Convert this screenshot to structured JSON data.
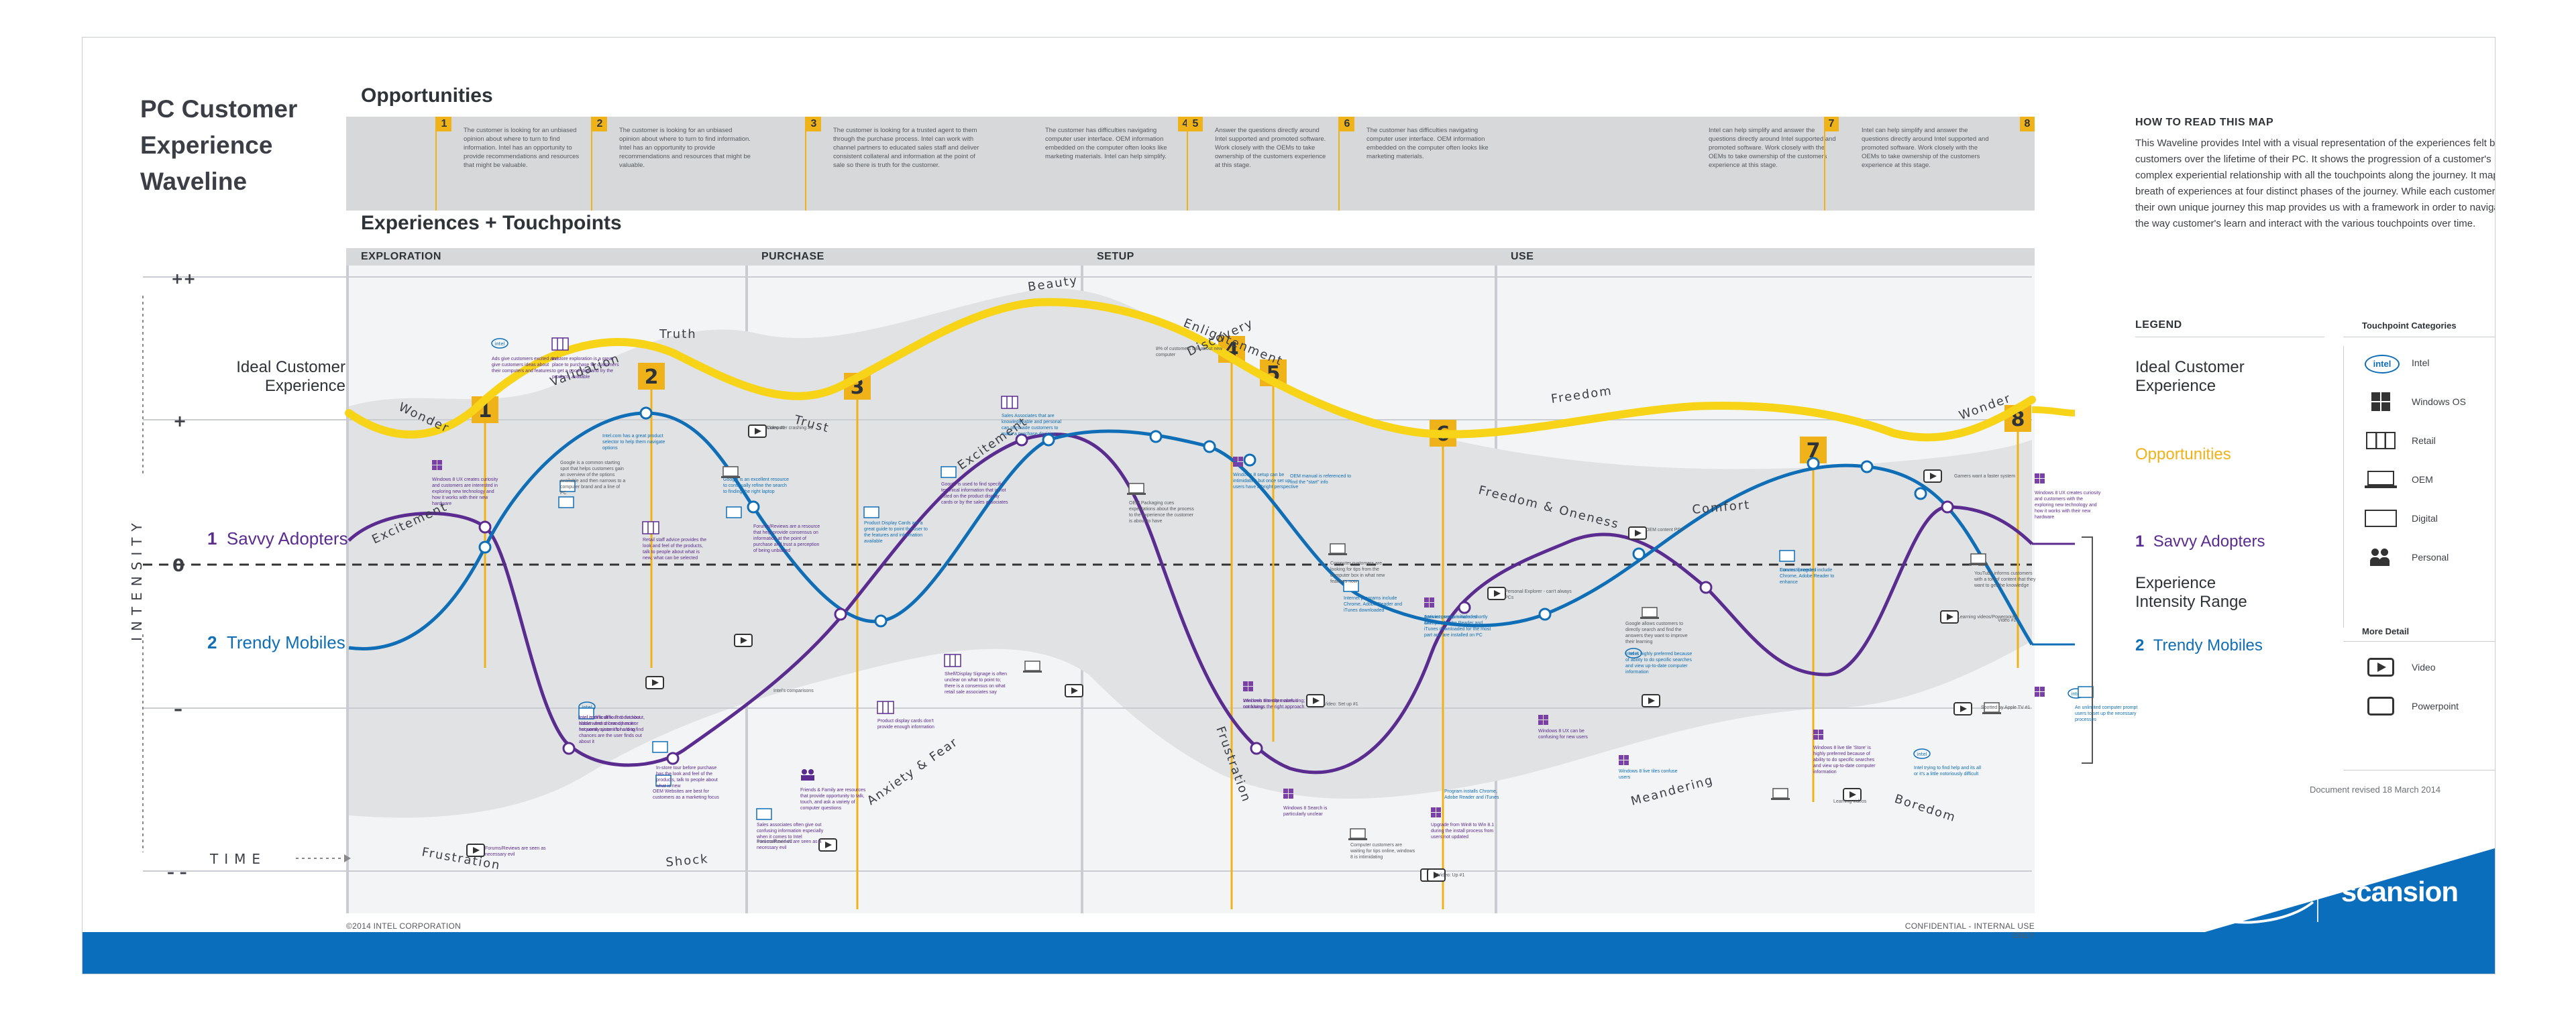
{
  "title": "PC Customer Experience Waveline",
  "sections": {
    "opportunities": "Opportunities",
    "experiences": "Experiences + Touchpoints"
  },
  "phases": [
    {
      "label": "EXPLORATION"
    },
    {
      "label": "PURCHASE"
    },
    {
      "label": "SETUP"
    },
    {
      "label": "USE"
    }
  ],
  "opportunities": [
    {
      "num": "1",
      "text": "The customer is looking for an unbiased opinion about where to turn to find information. Intel has an opportunity to provide recommendations and resources that might be valuable."
    },
    {
      "num": "2",
      "text": "The customer is looking for an unbiased opinion about where to turn to find information. Intel has an opportunity to provide recommendations and resources that might be valuable."
    },
    {
      "num": "3",
      "text": "The customer is looking for a trusted agent to them through the purchase process. Intel can work with channel partners to educated sales staff and deliver consistent collateral and information at the point of sale so there is truth for the customer."
    },
    {
      "num": "4",
      "text": "The customer has difficulties navigating computer user interface. OEM information embedded on the computer often looks like marketing materials. Intel can help simplify."
    },
    {
      "num": "5",
      "text": "Answer the questions directly around Intel supported and promoted software. Work closely with the OEMs to take ownership of the customers experience at this stage."
    },
    {
      "num": "6",
      "text": "The customer has difficulties navigating computer user interface. OEM information embedded on the computer often looks like marketing materials."
    },
    {
      "num": "7",
      "text": "Intel can help simplify and answer the questions directly around Intel supported and promoted software. Work closely with the OEMs to take ownership of the customers experience at this stage."
    },
    {
      "num": "8",
      "text": "Intel can help simplify and answer the questions directly around Intel supported and promoted software. Work closely with the OEMs to take ownership of the customers experience at this stage."
    }
  ],
  "axis": {
    "intensity": "INTENSITY",
    "time": "TIME",
    "ticks": [
      "++",
      "+",
      "0",
      "–",
      "– –"
    ]
  },
  "ideal_words": [
    {
      "text": "Wonder"
    },
    {
      "text": "Validation"
    },
    {
      "text": "Truth"
    },
    {
      "text": "Trust"
    },
    {
      "text": "Beauty"
    },
    {
      "text": "Enlightenment"
    },
    {
      "text": "Discovery"
    },
    {
      "text": "Freedom"
    },
    {
      "text": "Wonder"
    }
  ],
  "emotion_words": [
    {
      "text": "Excitement"
    },
    {
      "text": "Excitement"
    },
    {
      "text": "Frustration"
    },
    {
      "text": "Shock"
    },
    {
      "text": "Anxiety & Fear"
    },
    {
      "text": "Frustration"
    },
    {
      "text": "Freedom & Oneness"
    },
    {
      "text": "Comfort"
    },
    {
      "text": "Meandering"
    },
    {
      "text": "Boredom"
    }
  ],
  "chart_labels": {
    "ideal_left": "Ideal Customer Experience",
    "savvy_left": "Savvy Adopters",
    "trendy_left": "Trendy Mobiles",
    "savvy_num": "1",
    "trendy_num": "2"
  },
  "touchpoints": [
    {
      "text": "Windows 8 UX creates curiosity and customers are interested in exploring new technology and how it works with their new hardware",
      "color": "purple"
    },
    {
      "text": "Ads give customers excited and give customers ideas about their computers and features",
      "color": "purple"
    },
    {
      "text": "In-store exploration is a great place to purchase for customers to get a good idea and try the products available",
      "color": "purple"
    },
    {
      "text": "Google is a common starting spot that helps customers gain an overview of the options available and then narrows to a computer brand and a line of PC",
      "color": "gray"
    },
    {
      "text": "Intel.com has a great product selector to help them navigate options",
      "color": "blue"
    },
    {
      "text": "Retail staff advice provides the look and feel of the products, talk to people about what is new, what can be selected",
      "color": "purple"
    },
    {
      "text": "Google is an excellent resource to continually refine the search to finding the right laptop",
      "color": "blue"
    },
    {
      "text": "Forums/Reviews are a resource that help provide consensus on information at the point of purchase and trust a perception of being unbiased",
      "color": "purple"
    },
    {
      "text": "Video #1",
      "color": "gray"
    },
    {
      "text": "Product Display Cards are a great guide to point the user to the features and information available",
      "color": "blue"
    },
    {
      "text": "Google is used to find specific technical information that is not listed on the product display cards or by the sales associates",
      "color": "purple"
    },
    {
      "text": "Sales Associates that are knowledgeable and personal can persuade customers to make a purchase decision",
      "color": "blue"
    },
    {
      "text": "Windows 8 setup can be intimidating but once set up users have a bright perspective",
      "color": "blue"
    },
    {
      "text": "OEM Packaging cues expectations about the process to the experience the customer is about to have",
      "color": "gray"
    },
    {
      "text": "8% of customers talk about new computer",
      "color": "gray"
    },
    {
      "text": "Computer customers are looking for tips from the computer box in what new features now",
      "color": "gray"
    },
    {
      "text": "OEM manual is referenced to find the \"start\" info",
      "color": "blue"
    },
    {
      "text": "Internet programs include Chrome, Adobe Reader and iTunes downloaded",
      "color": "blue"
    },
    {
      "text": "Antivirus setup initiated shortly after purchase",
      "color": "blue"
    },
    {
      "text": "Internet program includes Chrome, Adobe Reader and iTunes downloaded for the most part and are installed on PC",
      "color": "blue"
    },
    {
      "text": "Personal Explorer - can't always PCs",
      "color": "gray"
    },
    {
      "text": "OEM content PCs",
      "color": "gray"
    },
    {
      "text": "Google allows customers to directly search and find the answers they want to improve their learning",
      "color": "gray"
    },
    {
      "text": "Intel is highly preferred because of ability to do specific searches and view up-to-date computer information",
      "color": "blue"
    },
    {
      "text": "Connect program include Chrome, Adobe Reader to enhance",
      "color": "blue"
    },
    {
      "text": "Forums if needed",
      "color": "blue"
    },
    {
      "text": "Windows 8 UX creates curiosity and customers with the exploring new technology and how it works with their new hardware",
      "color": "purple"
    },
    {
      "text": "YouTube informs customers with a ton of content that they want to get the knowledge",
      "color": "gray"
    },
    {
      "text": "Learning videos/Powerpoint",
      "color": "gray"
    },
    {
      "text": "Intel is difficult to find out about, hidden and shows up more frequently since it's hard to find",
      "color": "purple"
    },
    {
      "text": "Intel.com is difficult to find out about when a brand has it or not some system for a long chances are the user finds out about it",
      "color": "purple"
    },
    {
      "text": "In-store tour before purchase has the look and feel of the products, talk to people about what is new",
      "color": "purple"
    },
    {
      "text": "OEM Websites are best for customers as a marketing focus",
      "color": "purple"
    },
    {
      "text": "Sales associates often give out confusing information especially when it comes to Intel",
      "color": "purple"
    },
    {
      "text": "Forums/Reviews are seen as a necessary evil",
      "color": "purple"
    },
    {
      "text": "Friends & Family are resources that provide opportunity to talk, touch, and ask a variety of computer questions",
      "color": "purple"
    },
    {
      "text": "Product display cards don't provide enough information",
      "color": "purple"
    },
    {
      "text": "Shelf/Display Signage is often unclear on what to point to; there is a consensus on what retail sale associates say",
      "color": "purple"
    },
    {
      "text": "Windows 8 setup makes it confusing",
      "color": "purple"
    },
    {
      "text": "Intel web site often confusing; not always the right approach",
      "color": "purple"
    },
    {
      "text": "Windows 8 Search is particularly unclear",
      "color": "purple"
    },
    {
      "text": "Computer customers are waiting for tips online, windows 8 is intimidating",
      "color": "gray"
    },
    {
      "text": "Upgrade from Win8 to Win 8.1 during the install process from users not updated",
      "color": "purple"
    },
    {
      "text": "Windows 8 UX can be confusing for new users",
      "color": "purple"
    },
    {
      "text": "Program installs Chrome, Adobe Reader and iTunes",
      "color": "blue"
    },
    {
      "text": "Windows 8 live tiles confuse users",
      "color": "blue"
    },
    {
      "text": "Windows 8 live tile 'Store' is highly preferred because of ability to do specific searches and view up-to-date computer information",
      "color": "purple"
    },
    {
      "text": "Intel trying to find help and its all or it's a little notoriously difficult",
      "color": "blue"
    },
    {
      "text": "An unlimited computer prompt users to set up the necessary processes",
      "color": "blue"
    },
    {
      "text": "Gamers want a faster system",
      "color": "gray"
    },
    {
      "text": "Spotted by Apple TV #1",
      "color": "gray"
    },
    {
      "text": "Learning videos",
      "color": "gray"
    },
    {
      "text": "Video #1",
      "color": "gray"
    },
    {
      "text": "Computer crashing #2",
      "color": "gray"
    },
    {
      "text": "Forums/Reviews are seen as necessary evil",
      "color": "purple"
    },
    {
      "text": "Intel confused #2",
      "color": "gray"
    },
    {
      "text": "Intel's comparisons",
      "color": "gray"
    },
    {
      "text": "Video: Set up #1",
      "color": "gray"
    },
    {
      "text": "Video: Up #1",
      "color": "gray"
    }
  ],
  "howto": {
    "title": "HOW TO READ THIS MAP",
    "text": "This Waveline provides Intel with a visual representation of the experiences felt by customers over the lifetime of their PC. It shows the progression of a customer's complex experiential relationship with all the touchpoints along the journey. It maps a breath of experiences at four distinct phases of the journey. While each customer has their own unique journey this map provides us with a framework in order to navigate the way customer's learn and interact with the various touchpoints over time."
  },
  "legend": {
    "title": "LEGEND",
    "categories_title": "Touchpoint Categories",
    "ideal": "Ideal Customer Experience",
    "opportunities": "Opportunities",
    "savvy_num": "1",
    "savvy": "Savvy Adopters",
    "range": "Experience Intensity Range",
    "trendy_num": "2",
    "trendy": "Trendy Mobiles",
    "categories": [
      {
        "label": "Intel",
        "icon": "intel-logo-icon"
      },
      {
        "label": "Windows OS",
        "icon": "windows-icon"
      },
      {
        "label": "Retail",
        "icon": "retail-icon"
      },
      {
        "label": "OEM",
        "icon": "laptop-icon"
      },
      {
        "label": "Digital",
        "icon": "digital-icon"
      },
      {
        "label": "Personal",
        "icon": "people-icon"
      }
    ],
    "more_title": "More Detail",
    "more": [
      {
        "label": "Video",
        "icon": "video-icon"
      },
      {
        "label": "Powerpoint",
        "icon": "powerpoint-icon"
      }
    ]
  },
  "revised": "Document revised 18 March 2014",
  "footer": {
    "copyright": "©2014 INTEL CORPORATION",
    "confidential": "CONFIDENTIAL - INTERNAL USE ONLY"
  },
  "brand": {
    "intel": "intel",
    "scansion": "scansion"
  },
  "colors": {
    "ideal": "#f7d417",
    "opportunity": "#f0b219",
    "savvy": "#5b2c8f",
    "trendy": "#0f6eb6",
    "band": "#0a6ebd"
  }
}
